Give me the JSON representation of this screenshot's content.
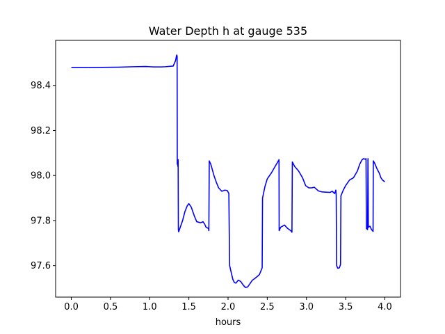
{
  "chart_data": {
    "type": "line",
    "title": "Water Depth h at gauge 535",
    "xlabel": "hours",
    "ylabel": "",
    "xlim": [
      -0.2,
      4.2
    ],
    "ylim": [
      97.46,
      98.6
    ],
    "grid": false,
    "x_ticks": [
      0.0,
      0.5,
      1.0,
      1.5,
      2.0,
      2.5,
      3.0,
      3.5,
      4.0
    ],
    "x_tick_labels": [
      "0.0",
      "0.5",
      "1.0",
      "1.5",
      "2.0",
      "2.5",
      "3.0",
      "3.5",
      "4.0"
    ],
    "y_ticks": [
      97.6,
      97.8,
      98.0,
      98.2,
      98.4
    ],
    "y_tick_labels": [
      "97.6",
      "97.8",
      "98.0",
      "98.2",
      "98.4"
    ],
    "series": [
      {
        "color": "#0000ff",
        "points": [
          [
            0.0,
            98.479
          ],
          [
            0.2,
            98.479
          ],
          [
            0.4,
            98.48
          ],
          [
            0.6,
            98.481
          ],
          [
            0.8,
            98.483
          ],
          [
            0.95,
            98.484
          ],
          [
            1.0,
            98.483
          ],
          [
            1.05,
            98.482
          ],
          [
            1.15,
            98.482
          ],
          [
            1.2,
            98.483
          ],
          [
            1.3,
            98.486
          ],
          [
            1.33,
            98.51
          ],
          [
            1.345,
            98.535
          ],
          [
            1.35,
            98.53
          ],
          [
            1.352,
            98.05
          ],
          [
            1.355,
            98.07
          ],
          [
            1.36,
            98.04
          ],
          [
            1.363,
            98.07
          ],
          [
            1.366,
            97.76
          ],
          [
            1.37,
            97.75
          ],
          [
            1.39,
            97.77
          ],
          [
            1.42,
            97.8
          ],
          [
            1.45,
            97.84
          ],
          [
            1.48,
            97.866
          ],
          [
            1.5,
            97.875
          ],
          [
            1.53,
            97.86
          ],
          [
            1.57,
            97.82
          ],
          [
            1.6,
            97.795
          ],
          [
            1.65,
            97.79
          ],
          [
            1.68,
            97.795
          ],
          [
            1.7,
            97.785
          ],
          [
            1.72,
            97.77
          ],
          [
            1.75,
            97.765
          ],
          [
            1.755,
            97.755
          ],
          [
            1.76,
            98.065
          ],
          [
            1.78,
            98.05
          ],
          [
            1.82,
            98.0
          ],
          [
            1.85,
            97.97
          ],
          [
            1.88,
            97.945
          ],
          [
            1.92,
            97.93
          ],
          [
            1.96,
            97.935
          ],
          [
            1.99,
            97.933
          ],
          [
            2.01,
            97.92
          ],
          [
            2.02,
            97.6
          ],
          [
            2.04,
            97.57
          ],
          [
            2.06,
            97.54
          ],
          [
            2.08,
            97.525
          ],
          [
            2.1,
            97.522
          ],
          [
            2.13,
            97.535
          ],
          [
            2.16,
            97.53
          ],
          [
            2.19,
            97.515
          ],
          [
            2.22,
            97.503
          ],
          [
            2.25,
            97.505
          ],
          [
            2.28,
            97.52
          ],
          [
            2.31,
            97.535
          ],
          [
            2.35,
            97.545
          ],
          [
            2.4,
            97.56
          ],
          [
            2.435,
            97.59
          ],
          [
            2.44,
            97.9
          ],
          [
            2.47,
            97.95
          ],
          [
            2.5,
            97.985
          ],
          [
            2.55,
            98.01
          ],
          [
            2.6,
            98.04
          ],
          [
            2.65,
            98.07
          ],
          [
            2.652,
            97.755
          ],
          [
            2.67,
            97.77
          ],
          [
            2.72,
            97.78
          ],
          [
            2.76,
            97.765
          ],
          [
            2.8,
            97.755
          ],
          [
            2.815,
            97.748
          ],
          [
            2.82,
            98.06
          ],
          [
            2.85,
            98.04
          ],
          [
            2.9,
            98.02
          ],
          [
            2.95,
            97.99
          ],
          [
            2.99,
            97.955
          ],
          [
            3.03,
            97.945
          ],
          [
            3.07,
            97.945
          ],
          [
            3.1,
            97.948
          ],
          [
            3.15,
            97.932
          ],
          [
            3.2,
            97.927
          ],
          [
            3.25,
            97.926
          ],
          [
            3.3,
            97.925
          ],
          [
            3.33,
            97.93
          ],
          [
            3.36,
            97.92
          ],
          [
            3.375,
            97.935
          ],
          [
            3.38,
            97.912
          ],
          [
            3.385,
            97.6
          ],
          [
            3.4,
            97.588
          ],
          [
            3.42,
            97.59
          ],
          [
            3.435,
            97.605
          ],
          [
            3.44,
            97.91
          ],
          [
            3.47,
            97.935
          ],
          [
            3.5,
            97.955
          ],
          [
            3.52,
            97.965
          ],
          [
            3.55,
            97.98
          ],
          [
            3.6,
            97.99
          ],
          [
            3.65,
            98.02
          ],
          [
            3.68,
            98.05
          ],
          [
            3.71,
            98.07
          ],
          [
            3.73,
            98.075
          ],
          [
            3.75,
            98.072
          ],
          [
            3.76,
            98.075
          ],
          [
            3.765,
            97.765
          ],
          [
            3.78,
            97.76
          ],
          [
            3.785,
            98.075
          ],
          [
            3.79,
            97.77
          ],
          [
            3.81,
            97.775
          ],
          [
            3.83,
            97.76
          ],
          [
            3.85,
            97.752
          ],
          [
            3.853,
            98.065
          ],
          [
            3.87,
            98.055
          ],
          [
            3.9,
            98.03
          ],
          [
            3.93,
            98.01
          ],
          [
            3.95,
            97.99
          ],
          [
            3.97,
            97.98
          ],
          [
            4.0,
            97.972
          ]
        ]
      }
    ]
  }
}
